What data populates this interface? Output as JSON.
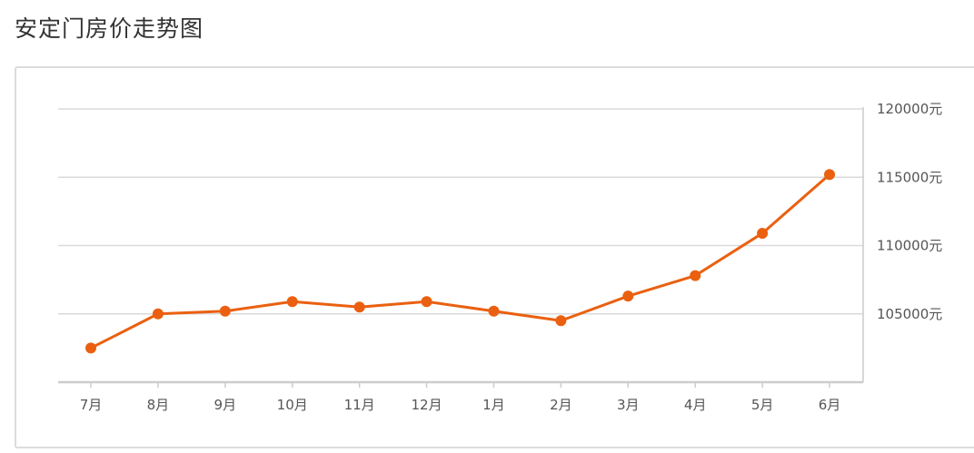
{
  "page": {
    "title": "安定门房价走势图"
  },
  "chart_data": {
    "type": "line",
    "title": "安定门房价走势图",
    "xlabel": "",
    "ylabel": "",
    "categories": [
      "7月",
      "8月",
      "9月",
      "10月",
      "11月",
      "12月",
      "1月",
      "2月",
      "3月",
      "4月",
      "5月",
      "6月"
    ],
    "series": [
      {
        "values": [
          102500,
          105000,
          105200,
          105900,
          105500,
          105900,
          105200,
          104500,
          106300,
          107800,
          110900,
          115200
        ]
      }
    ],
    "ylim": [
      100000,
      120000
    ],
    "y_ticks": [
      105000,
      110000,
      115000,
      120000
    ],
    "y_tick_labels": [
      "105000元",
      "110000元",
      "115000元",
      "120000元"
    ],
    "y_axis_position": "right",
    "grid": true,
    "colors": {
      "line": "#EA6010",
      "grid": "#d9d9d9",
      "axis": "#cccccc"
    }
  }
}
